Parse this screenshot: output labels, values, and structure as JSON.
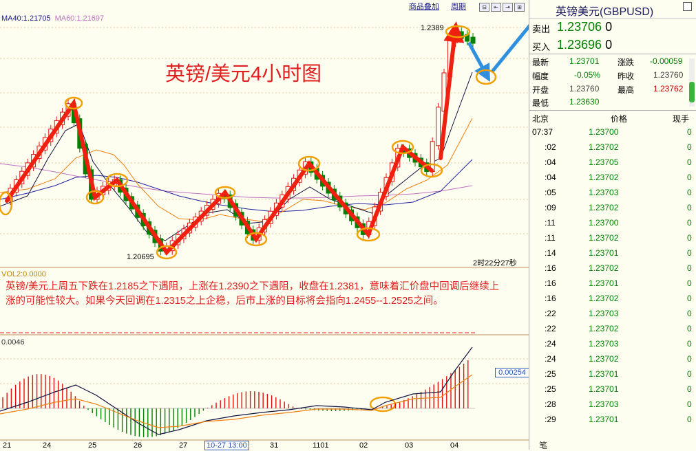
{
  "chart": {
    "ma40_label": "MA40:1.21705",
    "ma60_label": "MA60:1.21697",
    "menu_overlay": "商品叠加",
    "menu_period": "周期",
    "overlay_title": "英镑/美元4小时图",
    "peak_label": "1.2389",
    "low_label": "1.20695",
    "timer": "2时22分27秒",
    "vol_label": "VOL2:0.0000",
    "commentary": "英镑/美元上周五下跌在1.2185之下遇阻，上涨在1.2390之下遇阻，收盘在1.2381，意味着汇价盘中回调后继续上涨的可能性较大。如果今天回调在1.2315之上企稳，后市上涨的目标将会指向1.2455--1.2525之间。",
    "macd_label": "0.0046",
    "macd_value": "0.00254",
    "x_cursor_label": "10-27 13:00",
    "x_ticks": [
      "21",
      "24",
      "25",
      "26",
      "27",
      "31",
      "1101",
      "02",
      "03",
      "04"
    ]
  },
  "quote": {
    "title": "英镑美元(GBPUSD)",
    "sell_label": "卖出",
    "sell_price": "1.23706",
    "sell_size": "0",
    "buy_label": "买入",
    "buy_price": "1.23696",
    "buy_size": "0",
    "stats": {
      "latest_label": "最新",
      "latest": "1.23701",
      "change_label": "涨跌",
      "change": "-0.00059",
      "amp_label": "幅度",
      "amp": "-0.05%",
      "prev_label": "昨收",
      "prev": "1.23760",
      "open_label": "开盘",
      "open": "1.23760",
      "high_label": "最高",
      "high": "1.23762",
      "low_label": "最低",
      "low": "1.23630"
    },
    "tick_header": {
      "time": "北京",
      "price": "价格",
      "vol": "现手"
    },
    "ticks": [
      {
        "t": "07:37",
        "p": "1.23700",
        "v": "0"
      },
      {
        "t": ":02",
        "p": "1.23702",
        "v": "0"
      },
      {
        "t": ":04",
        "p": "1.23705",
        "v": "0"
      },
      {
        "t": ":04",
        "p": "1.23702",
        "v": "0"
      },
      {
        "t": ":05",
        "p": "1.23703",
        "v": "0"
      },
      {
        "t": ":09",
        "p": "1.23702",
        "v": "0"
      },
      {
        "t": ":11",
        "p": "1.23700",
        "v": "0"
      },
      {
        "t": ":11",
        "p": "1.23702",
        "v": "0"
      },
      {
        "t": ":14",
        "p": "1.23701",
        "v": "0"
      },
      {
        "t": ":16",
        "p": "1.23702",
        "v": "0"
      },
      {
        "t": ":16",
        "p": "1.23701",
        "v": "0"
      },
      {
        "t": ":16",
        "p": "1.23702",
        "v": "0"
      },
      {
        "t": ":22",
        "p": "1.23703",
        "v": "0"
      },
      {
        "t": ":22",
        "p": "1.23702",
        "v": "0"
      },
      {
        "t": ":24",
        "p": "1.23703",
        "v": "0"
      },
      {
        "t": ":24",
        "p": "1.23702",
        "v": "0"
      },
      {
        "t": ":25",
        "p": "1.23701",
        "v": "0"
      },
      {
        "t": ":25",
        "p": "1.23701",
        "v": "0"
      },
      {
        "t": ":28",
        "p": "1.23703",
        "v": "0"
      },
      {
        "t": ":29",
        "p": "1.23701",
        "v": "0"
      }
    ],
    "footer": "笔"
  },
  "colors": {
    "up": "#e01010",
    "down": "#008000",
    "ma_black": "#101040",
    "ma_orange": "#f08010",
    "ma_blue": "#2020a0",
    "ma_pink": "#c070c0",
    "arrow_red": "#f02010",
    "arrow_blue": "#3090e0",
    "circle": "#f0a000"
  }
}
